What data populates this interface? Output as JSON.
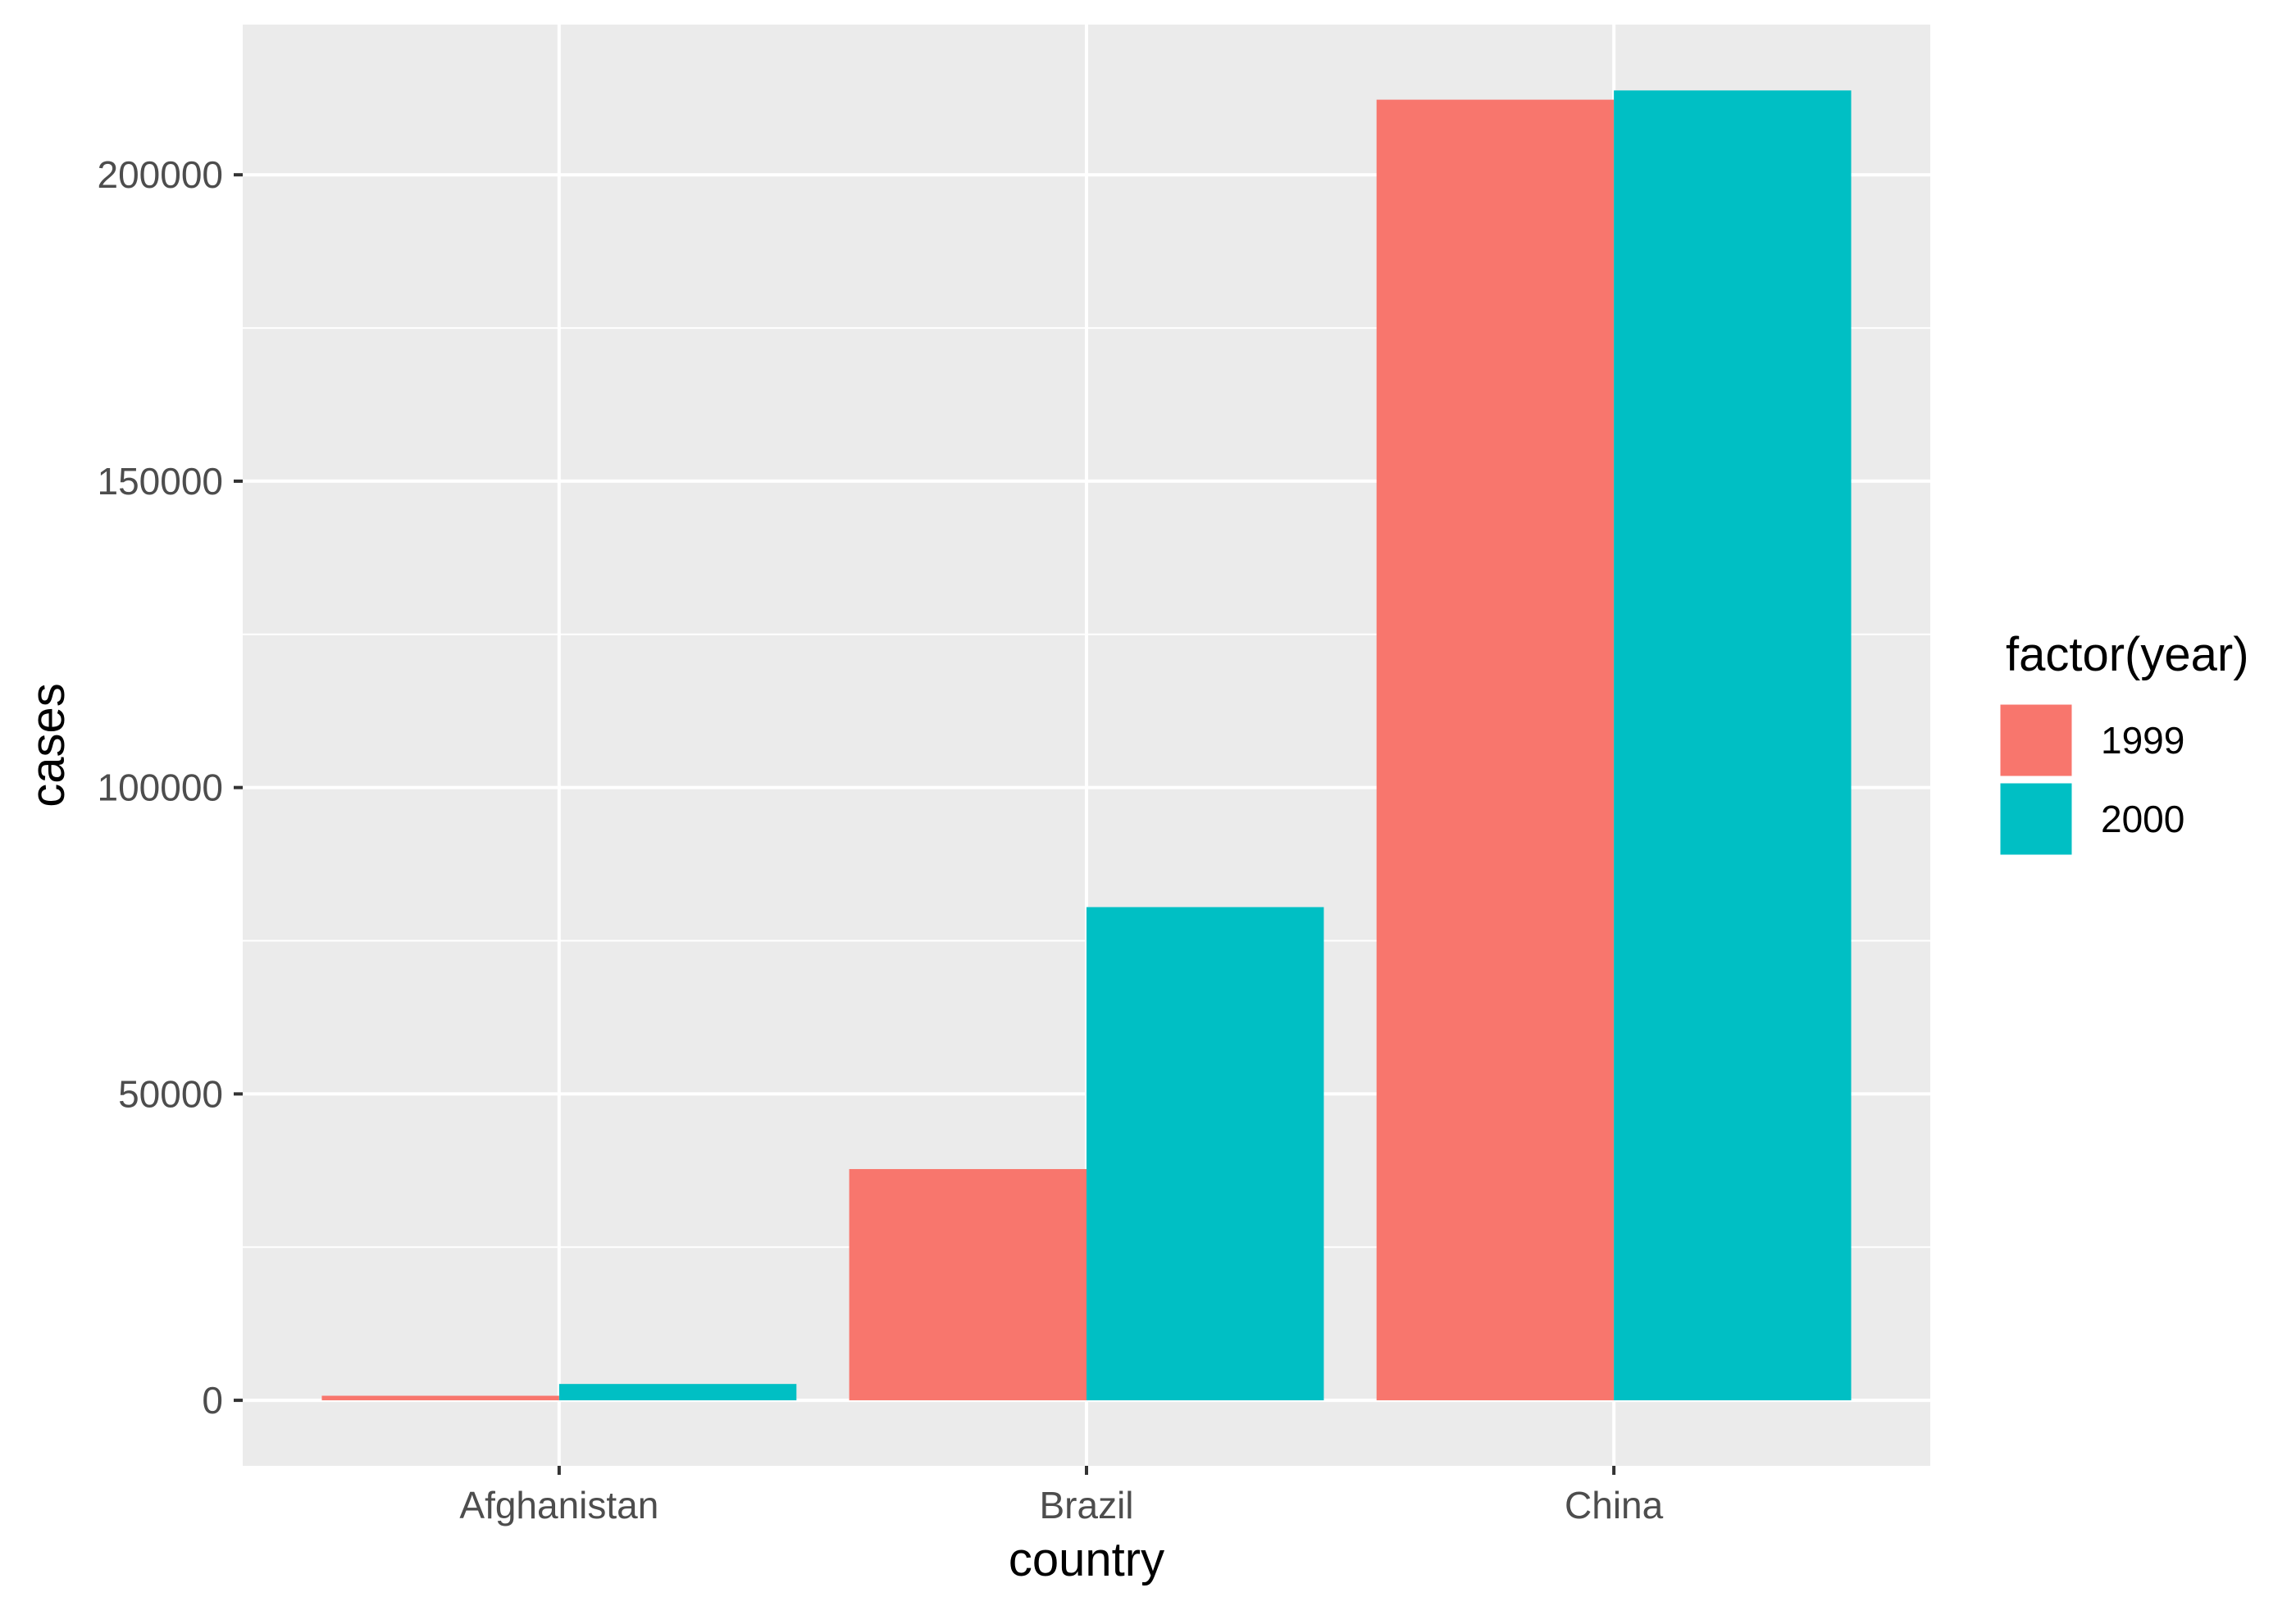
{
  "chart_data": {
    "type": "bar",
    "categories": [
      "Afghanistan",
      "Brazil",
      "China"
    ],
    "series": [
      {
        "name": "1999",
        "values": [
          745,
          37737,
          212258
        ],
        "color": "#F8766D"
      },
      {
        "name": "2000",
        "values": [
          2666,
          80488,
          213766
        ],
        "color": "#00BFC4"
      }
    ],
    "xlabel": "country",
    "ylabel": "cases",
    "ylim": [
      -10690,
      224512
    ],
    "yticks": [
      0,
      50000,
      100000,
      150000,
      200000
    ],
    "ytick_labels": [
      "0",
      "50000",
      "100000",
      "150000",
      "200000"
    ],
    "legend": {
      "title": "factor(year)",
      "position": "right"
    },
    "grid": true,
    "background_color": "#EBEBEB",
    "grid_color": "#FFFFFF"
  }
}
